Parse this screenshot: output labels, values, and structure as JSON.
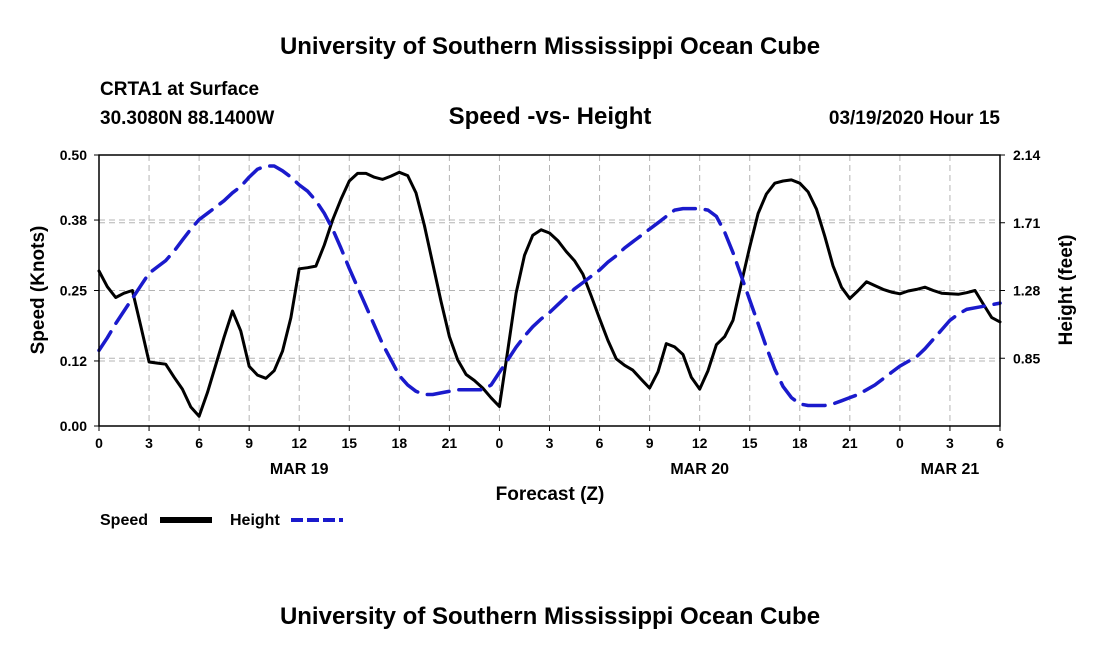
{
  "header": {
    "title": "University of Southern Mississippi Ocean Cube",
    "station": "CRTA1 at Surface",
    "coords": "30.3080N 88.1400W",
    "datetime": "03/19/2020 Hour 15"
  },
  "footer": {
    "title": "University of Southern Mississippi Ocean Cube"
  },
  "legend": {
    "speed_label": "Speed",
    "height_label": "Height"
  },
  "colors": {
    "speed": "#000000",
    "height": "#1a1acc",
    "grid": "#b4b4b4"
  },
  "chart_data": {
    "type": "line",
    "title": "Speed -vs- Height",
    "xlabel": "Forecast (Z)",
    "ylabel_left": "Speed (Knots)",
    "ylabel_right": "Height (feet)",
    "x_range_hours": [
      0,
      54
    ],
    "x_ticks": [
      {
        "hour": 0,
        "label": "0"
      },
      {
        "hour": 3,
        "label": "3"
      },
      {
        "hour": 6,
        "label": "6"
      },
      {
        "hour": 9,
        "label": "9"
      },
      {
        "hour": 12,
        "label": "12"
      },
      {
        "hour": 15,
        "label": "15"
      },
      {
        "hour": 18,
        "label": "18"
      },
      {
        "hour": 21,
        "label": "21"
      },
      {
        "hour": 24,
        "label": "0"
      },
      {
        "hour": 27,
        "label": "3"
      },
      {
        "hour": 30,
        "label": "6"
      },
      {
        "hour": 33,
        "label": "9"
      },
      {
        "hour": 36,
        "label": "12"
      },
      {
        "hour": 39,
        "label": "15"
      },
      {
        "hour": 42,
        "label": "18"
      },
      {
        "hour": 45,
        "label": "21"
      },
      {
        "hour": 48,
        "label": "0"
      },
      {
        "hour": 51,
        "label": "3"
      },
      {
        "hour": 54,
        "label": "6"
      }
    ],
    "date_labels": [
      {
        "hour": 12,
        "label": "MAR 19"
      },
      {
        "hour": 36,
        "label": "MAR 20"
      },
      {
        "hour": 51,
        "label": "MAR 21"
      }
    ],
    "y_left": {
      "range": [
        0,
        0.5
      ],
      "ticks": [
        "0.00",
        "0.12",
        "0.25",
        "0.38",
        "0.50"
      ]
    },
    "y_right": {
      "range": [
        0.42,
        2.14
      ],
      "ticks": [
        "0.85",
        "1.28",
        "1.71",
        "2.14"
      ]
    },
    "series": [
      {
        "name": "Speed",
        "axis": "left",
        "style": "solid",
        "x": [
          0,
          0.5,
          1,
          1.5,
          2,
          2.5,
          3,
          3.5,
          4,
          4.5,
          5,
          5.5,
          6,
          6.5,
          7,
          7.5,
          8,
          8.5,
          9,
          9.5,
          10,
          10.5,
          11,
          11.5,
          12,
          12.5,
          13,
          13.5,
          14,
          14.5,
          15,
          15.5,
          16,
          16.5,
          17,
          17.5,
          18,
          18.5,
          19,
          19.5,
          20,
          20.5,
          21,
          21.5,
          22,
          22.5,
          23,
          23.5,
          24,
          24.5,
          25,
          25.5,
          26,
          26.5,
          27,
          27.5,
          28,
          28.5,
          29,
          29.5,
          30,
          30.5,
          31,
          31.5,
          32,
          32.5,
          33,
          33.5,
          34,
          34.5,
          35,
          35.5,
          36,
          36.5,
          37,
          37.5,
          38,
          38.5,
          39,
          39.5,
          40,
          40.5,
          41,
          41.5,
          42,
          42.5,
          43,
          43.5,
          44,
          44.5,
          45,
          45.5,
          46,
          46.5,
          47,
          47.5,
          48,
          48.5,
          49,
          49.5,
          50,
          50.5,
          51,
          51.5,
          52,
          52.5,
          53,
          53.5,
          54
        ],
        "values": [
          0.286,
          0.257,
          0.237,
          0.245,
          0.25,
          0.185,
          0.118,
          0.116,
          0.114,
          0.09,
          0.068,
          0.035,
          0.018,
          0.062,
          0.113,
          0.164,
          0.212,
          0.175,
          0.11,
          0.094,
          0.088,
          0.102,
          0.138,
          0.2,
          0.29,
          0.292,
          0.295,
          0.334,
          0.38,
          0.418,
          0.452,
          0.466,
          0.466,
          0.459,
          0.455,
          0.461,
          0.468,
          0.462,
          0.43,
          0.37,
          0.3,
          0.23,
          0.165,
          0.122,
          0.095,
          0.084,
          0.07,
          0.052,
          0.036,
          0.14,
          0.245,
          0.315,
          0.352,
          0.362,
          0.356,
          0.342,
          0.322,
          0.305,
          0.28,
          0.24,
          0.198,
          0.158,
          0.124,
          0.112,
          0.103,
          0.086,
          0.07,
          0.1,
          0.152,
          0.146,
          0.132,
          0.09,
          0.068,
          0.102,
          0.15,
          0.165,
          0.195,
          0.264,
          0.33,
          0.392,
          0.428,
          0.448,
          0.452,
          0.454,
          0.448,
          0.432,
          0.4,
          0.35,
          0.295,
          0.256,
          0.235,
          0.25,
          0.266,
          0.259,
          0.252,
          0.247,
          0.244,
          0.249,
          0.252,
          0.256,
          0.25,
          0.245,
          0.244,
          0.243,
          0.246,
          0.25,
          0.225,
          0.2,
          0.192
        ]
      },
      {
        "name": "Height",
        "axis": "right",
        "style": "dashed",
        "x": [
          0,
          0.5,
          1,
          1.5,
          2,
          2.5,
          3,
          3.5,
          4,
          4.5,
          5,
          5.5,
          6,
          6.5,
          7,
          7.5,
          8,
          8.5,
          9,
          9.5,
          10,
          10.5,
          11,
          11.5,
          12,
          12.5,
          13,
          13.5,
          14,
          14.5,
          15,
          15.5,
          16,
          16.5,
          17,
          17.5,
          18,
          18.5,
          19,
          19.5,
          20,
          20.5,
          21,
          21.5,
          22,
          22.5,
          23,
          23.5,
          24,
          24.5,
          25,
          25.5,
          26,
          26.5,
          27,
          27.5,
          28,
          28.5,
          29,
          29.5,
          30,
          30.5,
          31,
          31.5,
          32,
          32.5,
          33,
          33.5,
          34,
          34.5,
          35,
          35.5,
          36,
          36.5,
          37,
          37.5,
          38,
          38.5,
          39,
          39.5,
          40,
          40.5,
          41,
          41.5,
          42,
          42.5,
          43,
          43.5,
          44,
          44.5,
          45,
          45.5,
          46,
          46.5,
          47,
          47.5,
          48,
          48.5,
          49,
          49.5,
          50,
          50.5,
          51,
          51.5,
          52,
          52.5,
          53,
          53.5,
          54
        ],
        "values": [
          0.9,
          0.98,
          1.07,
          1.15,
          1.23,
          1.31,
          1.39,
          1.43,
          1.47,
          1.53,
          1.6,
          1.67,
          1.73,
          1.77,
          1.81,
          1.85,
          1.9,
          1.94,
          2.0,
          2.05,
          2.07,
          2.07,
          2.04,
          2.0,
          1.95,
          1.91,
          1.85,
          1.77,
          1.67,
          1.55,
          1.42,
          1.3,
          1.18,
          1.06,
          0.94,
          0.84,
          0.74,
          0.68,
          0.64,
          0.62,
          0.62,
          0.63,
          0.64,
          0.65,
          0.65,
          0.65,
          0.65,
          0.68,
          0.76,
          0.84,
          0.92,
          0.99,
          1.05,
          1.1,
          1.14,
          1.19,
          1.24,
          1.29,
          1.33,
          1.37,
          1.41,
          1.46,
          1.5,
          1.55,
          1.59,
          1.63,
          1.67,
          1.71,
          1.75,
          1.79,
          1.8,
          1.8,
          1.8,
          1.79,
          1.75,
          1.65,
          1.52,
          1.37,
          1.22,
          1.07,
          0.92,
          0.78,
          0.67,
          0.6,
          0.56,
          0.55,
          0.55,
          0.55,
          0.56,
          0.58,
          0.6,
          0.62,
          0.65,
          0.68,
          0.72,
          0.76,
          0.8,
          0.83,
          0.86,
          0.91,
          0.97,
          1.03,
          1.09,
          1.13,
          1.16,
          1.17,
          1.18,
          1.19,
          1.2
        ]
      }
    ]
  }
}
